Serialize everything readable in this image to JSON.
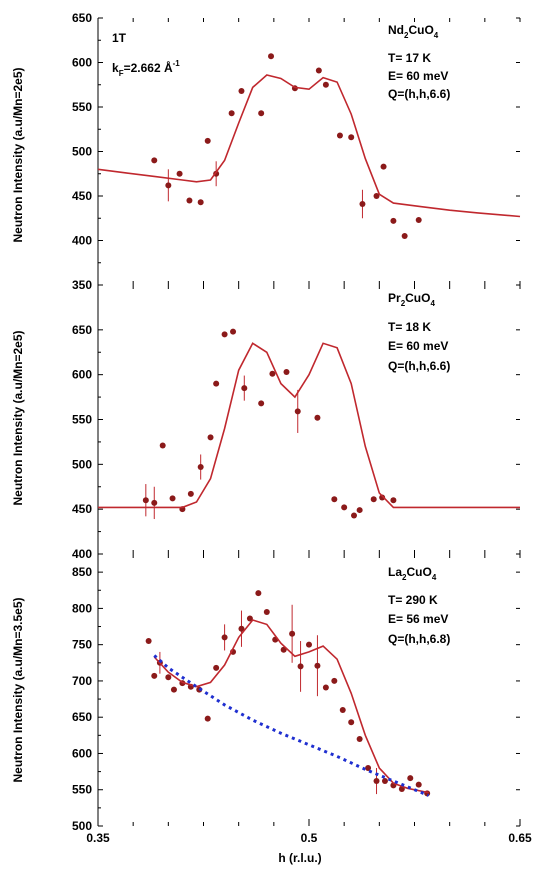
{
  "xaxis": {
    "label": "h (r.l.u.)",
    "range": [
      0.35,
      0.65
    ],
    "ticks": [
      {
        "value": 0.35,
        "label": "0.35"
      },
      {
        "value": 0.5,
        "label": "0.5"
      },
      {
        "value": 0.65,
        "label": "0.65"
      }
    ]
  },
  "chart_data": [
    {
      "type": "scatter",
      "panel": "Nd2CuO4",
      "ylabel": "Neutron Intensity (a.u/Mn=2e5)",
      "ylim": [
        350,
        650
      ],
      "yticks": [
        350,
        400,
        450,
        500,
        550,
        600,
        650
      ],
      "annotations": {
        "label_1t": "1T",
        "kf": {
          "pre": "k",
          "sub": "F",
          "mid": "=2.662 Å",
          "sup": "-1"
        },
        "compound": {
          "a": "Nd",
          "s1": "2",
          "b": "CuO",
          "s2": "4"
        },
        "temperature": "T= 17 K",
        "energy": "E= 60 meV",
        "q": "Q=(h,h,6.6)"
      },
      "series": [
        {
          "kind": "points",
          "x": [
            0.39,
            0.4,
            0.408,
            0.415,
            0.423,
            0.428,
            0.434,
            0.445,
            0.452,
            0.466,
            0.473,
            0.49,
            0.507,
            0.512,
            0.522,
            0.53,
            0.538,
            0.548,
            0.553,
            0.56,
            0.568,
            0.578
          ],
          "y": [
            490,
            462,
            475,
            445,
            443,
            512,
            475,
            543,
            568,
            543,
            607,
            571,
            591,
            575,
            518,
            516,
            441,
            450,
            483,
            422,
            405,
            423
          ],
          "errors": [
            0,
            18,
            0,
            0,
            0,
            0,
            14,
            0,
            0,
            0,
            0,
            0,
            0,
            0,
            0,
            0,
            16,
            0,
            0,
            0,
            0,
            0
          ]
        },
        {
          "kind": "curve",
          "x": [
            0.35,
            0.37,
            0.39,
            0.41,
            0.42,
            0.43,
            0.44,
            0.45,
            0.46,
            0.47,
            0.48,
            0.49,
            0.5,
            0.51,
            0.52,
            0.53,
            0.54,
            0.55,
            0.56,
            0.58,
            0.6,
            0.62,
            0.65
          ],
          "y": [
            480,
            476,
            472,
            468,
            466,
            468,
            490,
            532,
            572,
            586,
            582,
            572,
            570,
            583,
            578,
            542,
            492,
            452,
            442,
            438,
            434,
            431,
            427
          ]
        }
      ]
    },
    {
      "type": "scatter",
      "panel": "Pr2CuO4",
      "ylabel": "Neutron Intensity (a.u/Mn=2e5)",
      "ylim": [
        400,
        700
      ],
      "yticks": [
        400,
        450,
        500,
        550,
        600,
        650
      ],
      "annotations": {
        "compound": {
          "a": "Pr",
          "s1": "2",
          "b": "CuO",
          "s2": "4"
        },
        "temperature": "T= 18 K",
        "energy": "E= 60 meV",
        "q": "Q=(h,h,6.6)"
      },
      "series": [
        {
          "kind": "points",
          "x": [
            0.384,
            0.39,
            0.396,
            0.403,
            0.41,
            0.416,
            0.423,
            0.43,
            0.434,
            0.44,
            0.446,
            0.454,
            0.466,
            0.474,
            0.484,
            0.492,
            0.506,
            0.518,
            0.525,
            0.532,
            0.536,
            0.546,
            0.552,
            0.56
          ],
          "y": [
            460,
            457,
            521,
            462,
            450,
            467,
            497,
            530,
            590,
            645,
            648,
            585,
            568,
            601,
            603,
            559,
            552,
            461,
            452,
            443,
            449,
            461,
            463,
            460
          ],
          "errors": [
            18,
            18,
            0,
            0,
            0,
            0,
            14,
            0,
            0,
            0,
            0,
            14,
            0,
            0,
            0,
            24,
            0,
            0,
            0,
            0,
            0,
            0,
            0,
            0
          ]
        },
        {
          "kind": "curve",
          "x": [
            0.35,
            0.39,
            0.41,
            0.42,
            0.43,
            0.44,
            0.45,
            0.46,
            0.47,
            0.48,
            0.49,
            0.5,
            0.51,
            0.52,
            0.53,
            0.54,
            0.55,
            0.56,
            0.58,
            0.62,
            0.65
          ],
          "y": [
            452,
            452,
            452,
            458,
            484,
            540,
            605,
            635,
            625,
            590,
            575,
            600,
            635,
            630,
            590,
            520,
            468,
            452,
            452,
            452,
            452
          ]
        }
      ]
    },
    {
      "type": "scatter",
      "panel": "La2CuO4",
      "ylabel": "Neutron Intensity (a.u/Mn=3.5e5)",
      "ylim": [
        500,
        875
      ],
      "yticks": [
        500,
        550,
        600,
        650,
        700,
        750,
        800,
        850
      ],
      "annotations": {
        "compound": {
          "a": "La",
          "s1": "2",
          "b": "CuO",
          "s2": "4"
        },
        "temperature": "T= 290 K",
        "energy": "E= 56 meV",
        "q": "Q=(h,h,6.8)"
      },
      "series": [
        {
          "kind": "points",
          "x": [
            0.386,
            0.39,
            0.394,
            0.4,
            0.404,
            0.41,
            0.416,
            0.422,
            0.428,
            0.434,
            0.44,
            0.446,
            0.452,
            0.458,
            0.464,
            0.47,
            0.476,
            0.482,
            0.488,
            0.494,
            0.5,
            0.506,
            0.512,
            0.518,
            0.524,
            0.53,
            0.536,
            0.542,
            0.548,
            0.554,
            0.56,
            0.566,
            0.572,
            0.578,
            0.584
          ],
          "y": [
            755,
            707,
            725,
            705,
            688,
            697,
            692,
            688,
            648,
            718,
            760,
            740,
            772,
            786,
            821,
            795,
            757,
            743,
            765,
            720,
            750,
            721,
            691,
            700,
            660,
            643,
            620,
            580,
            562,
            562,
            556,
            551,
            566,
            557,
            545
          ],
          "errors": [
            0,
            0,
            15,
            0,
            0,
            0,
            0,
            0,
            0,
            0,
            18,
            0,
            25,
            0,
            0,
            0,
            0,
            0,
            40,
            35,
            0,
            42,
            0,
            0,
            0,
            0,
            0,
            0,
            18,
            0,
            0,
            0,
            0,
            0,
            0
          ]
        },
        {
          "kind": "curve",
          "x": [
            0.39,
            0.4,
            0.41,
            0.42,
            0.43,
            0.44,
            0.45,
            0.46,
            0.47,
            0.48,
            0.49,
            0.5,
            0.51,
            0.52,
            0.53,
            0.54,
            0.55,
            0.56,
            0.57,
            0.585
          ],
          "y": [
            733,
            712,
            698,
            692,
            698,
            722,
            760,
            784,
            778,
            752,
            734,
            740,
            748,
            730,
            683,
            625,
            580,
            559,
            552,
            546
          ]
        },
        {
          "kind": "dotted",
          "x": [
            0.39,
            0.4,
            0.42,
            0.44,
            0.46,
            0.48,
            0.5,
            0.52,
            0.54,
            0.56,
            0.585
          ],
          "y": [
            735,
            718,
            692,
            667,
            646,
            628,
            612,
            596,
            578,
            562,
            542
          ]
        }
      ]
    }
  ]
}
